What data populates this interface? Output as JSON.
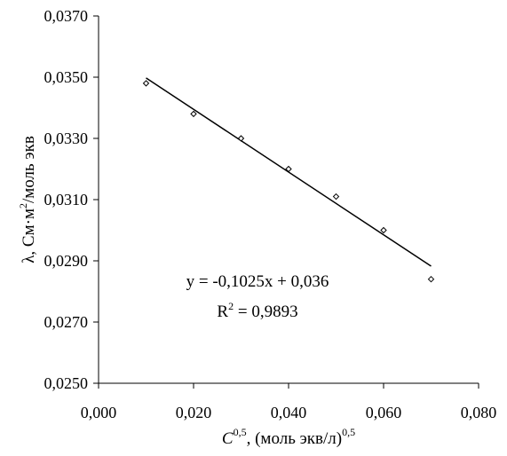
{
  "chart_data": {
    "type": "scatter",
    "x_axis": {
      "range": [
        0.0,
        0.08
      ],
      "ticks": [
        0.0,
        0.02,
        0.04,
        0.06,
        0.08
      ],
      "tick_labels": [
        "0,000",
        "0,020",
        "0,040",
        "0,060",
        "0,080"
      ],
      "label_main": "C",
      "label_sup": "0,5",
      "label_rest": ", (моль экв/л)",
      "label_rest_sup": "0,5"
    },
    "y_axis": {
      "range": [
        0.025,
        0.037
      ],
      "ticks": [
        0.025,
        0.027,
        0.029,
        0.031,
        0.033,
        0.035,
        0.037
      ],
      "tick_labels": [
        "0,0250",
        "0,0270",
        "0,0290",
        "0,0310",
        "0,0330",
        "0,0350",
        "0,0370"
      ],
      "label_main": "λ, См·м",
      "label_sup": "2",
      "label_rest": "/моль экв"
    },
    "series": [
      {
        "marker": "diamond",
        "points": [
          {
            "x": 0.01,
            "y": 0.0348
          },
          {
            "x": 0.02,
            "y": 0.0338
          },
          {
            "x": 0.03,
            "y": 0.033
          },
          {
            "x": 0.04,
            "y": 0.032
          },
          {
            "x": 0.05,
            "y": 0.0311
          },
          {
            "x": 0.06,
            "y": 0.03
          },
          {
            "x": 0.07,
            "y": 0.0284
          }
        ]
      }
    ],
    "trendline": {
      "slope": -0.1025,
      "intercept": 0.036,
      "x_from": 0.01,
      "x_to": 0.07,
      "equation": "y = -0,1025x + 0,036",
      "r2_main": "R",
      "r2_sup": "2",
      "r2_rest": " = 0,9893"
    },
    "grid": false,
    "legend": "none"
  }
}
